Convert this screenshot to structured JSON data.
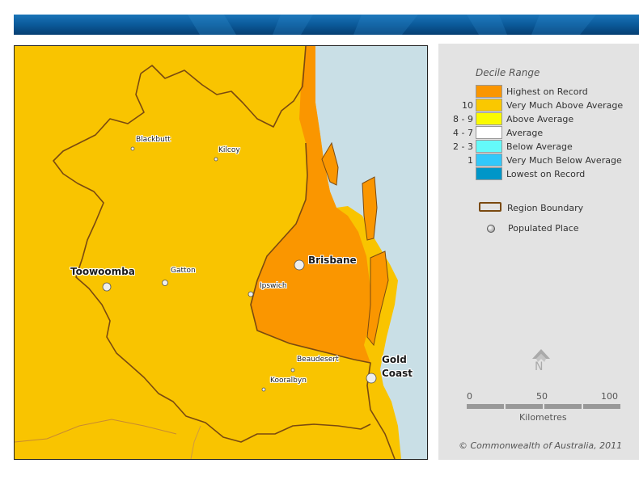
{
  "legend": {
    "title": "Decile Range",
    "rows": [
      {
        "range": "",
        "label": "Highest on Record",
        "color": "#fa9600"
      },
      {
        "range": "10",
        "label": "Very Much Above Average",
        "color": "#fac800"
      },
      {
        "range": "8 - 9",
        "label": "Above Average",
        "color": "#fafa00"
      },
      {
        "range": "4 - 7",
        "label": "Average",
        "color": "#ffffff"
      },
      {
        "range": "2 - 3",
        "label": "Below Average",
        "color": "#64fafa"
      },
      {
        "range": "1",
        "label": "Very Much Below Average",
        "color": "#32c8fa"
      },
      {
        "range": "",
        "label": "Lowest on Record",
        "color": "#0096c8"
      }
    ],
    "region_boundary_label": "Region Boundary",
    "populated_place_label": "Populated Place"
  },
  "north_label": "N",
  "scale": {
    "ticks": [
      "0",
      "50",
      "100"
    ],
    "unit": "Kilometres"
  },
  "copyright": "© Commonwealth of Australia, 2011",
  "places": {
    "blackbutt": "Blackbutt",
    "kilcoy": "Kilcoy",
    "toowoomba": "Toowoomba",
    "gatton": "Gatton",
    "brisbane": "Brisbane",
    "ipswich": "Ipswich",
    "beaudesert": "Beaudesert",
    "kooralbyn": "Kooralbyn",
    "gold_coast_line1": "Gold",
    "gold_coast_line2": "Coast"
  },
  "colors": {
    "very_much_above": "#f9c400",
    "highest_on_record": "#fa9600",
    "sea": "#c9dfe6",
    "boundary": "#7a4a10",
    "banner": "#0a5c9e"
  }
}
